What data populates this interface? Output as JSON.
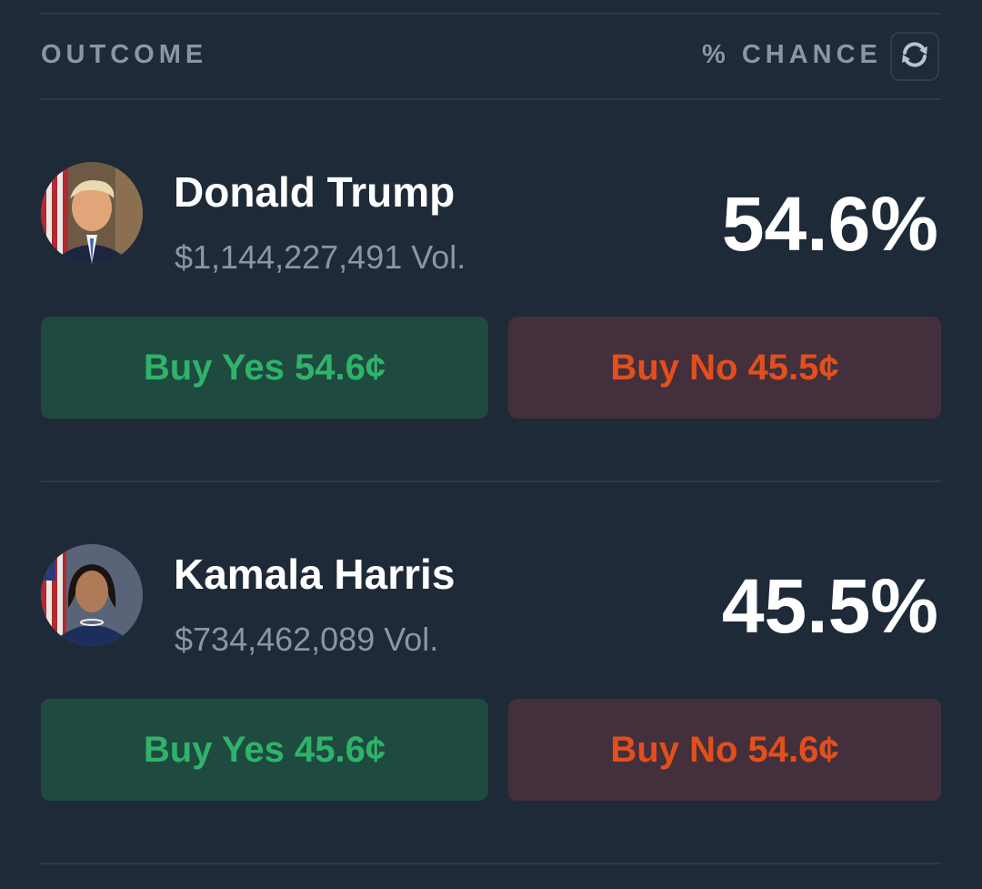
{
  "header": {
    "outcome_label": "OUTCOME",
    "chance_label": "% CHANCE",
    "refresh_icon": "refresh-icon"
  },
  "colors": {
    "background": "#1e2a38",
    "yes_bg": "#1f4a40",
    "yes_text": "#2fb36a",
    "no_bg": "#43303c",
    "no_text": "#e24f1d"
  },
  "outcomes": [
    {
      "name": "Donald Trump",
      "volume": "$1,144,227,491 Vol.",
      "chance": "54.6%",
      "buy_yes": "Buy Yes 54.6¢",
      "buy_no": "Buy No 45.5¢"
    },
    {
      "name": "Kamala Harris",
      "volume": "$734,462,089 Vol.",
      "chance": "45.5%",
      "buy_yes": "Buy Yes 45.6¢",
      "buy_no": "Buy No 54.6¢"
    }
  ]
}
